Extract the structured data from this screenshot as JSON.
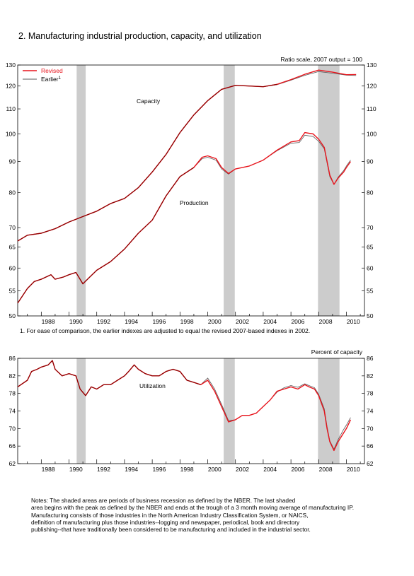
{
  "title": "2. Manufacturing industrial production, capacity, and utilization",
  "footnote": "1. For ease of comparison, the earlier indexes are adjusted to equal the revised 2007-based indexes in 2002.",
  "notes": " Notes: The shaded areas are periods of business recession as defined by the NBER.  The last shaded\narea begins with the peak as defined by the NBER and ends at the trough of a 3 month moving average of manufacturing IP.\n  Manufacturing consists of those industries in the North American Industry Classification System, or NAICS,\ndefinition of manufacturing plus those industries--logging and newspaper, periodical, book and directory\npublishing--that have traditionally been considered to be manufacturing and included in the industrial sector.",
  "colors": {
    "revised": "#e8141c",
    "earlier": "#5a5a5a",
    "capacity": "#8b0000",
    "recession": "#cccccc"
  },
  "chart_data": [
    {
      "type": "line",
      "scale": "log",
      "scale_note": "Ratio scale, 2007 output = 100",
      "xlim": [
        1986.3,
        2011.3
      ],
      "ylim": [
        50,
        130
      ],
      "x_ticks": [
        1988,
        1990,
        1992,
        1994,
        1996,
        1998,
        2000,
        2002,
        2004,
        2006,
        2008,
        2010
      ],
      "y_ticks": [
        50,
        55,
        60,
        65,
        70,
        80,
        90,
        100,
        110,
        120,
        130
      ],
      "recessions": [
        [
          1990.55,
          1991.2
        ],
        [
          2001.15,
          2001.95
        ],
        [
          2007.95,
          2009.5
        ]
      ],
      "legend": {
        "position": "top-left",
        "revised": "Revised",
        "earlier": "Earlier",
        "earlier_sup": "1"
      },
      "labels": {
        "capacity": "Capacity",
        "production": "Production"
      },
      "capacity": {
        "x": [
          1986.3,
          1987,
          1988,
          1989,
          1990,
          1991,
          1992,
          1993,
          1994,
          1995,
          1996,
          1997,
          1998,
          1999,
          2000,
          2001,
          2002,
          2003,
          2004,
          2005,
          2006,
          2007,
          2008,
          2009,
          2010,
          2010.7
        ],
        "revised": [
          66.5,
          68.0,
          68.5,
          69.7,
          71.5,
          73.0,
          74.5,
          76.7,
          78.2,
          81.5,
          86.5,
          92.5,
          100.5,
          107.5,
          113.5,
          118.5,
          120.3,
          120.0,
          119.7,
          120.8,
          123.0,
          125.5,
          127.5,
          126.5,
          125.3,
          125.4
        ],
        "earlier": [
          66.5,
          68.0,
          68.5,
          69.7,
          71.5,
          73.0,
          74.5,
          76.7,
          78.2,
          81.5,
          86.5,
          92.5,
          100.5,
          107.5,
          113.5,
          118.5,
          120.3,
          120.0,
          119.7,
          120.6,
          122.7,
          125.0,
          126.8,
          126.0,
          125.1,
          124.9
        ]
      },
      "production": {
        "x": [
          1986.3,
          1987,
          1987.5,
          1988,
          1988.7,
          1989,
          1989.6,
          1990,
          1990.5,
          1991,
          1991.5,
          1992,
          1993,
          1994,
          1995,
          1996,
          1997,
          1998,
          1999,
          1999.6,
          2000,
          2000.6,
          2001,
          2001.5,
          2002,
          2003,
          2004,
          2005,
          2006,
          2006.6,
          2007,
          2007.6,
          2008,
          2008.4,
          2008.8,
          2009.1,
          2009.4,
          2009.8,
          2010,
          2010.3
        ],
        "revised": [
          52.5,
          55.5,
          57.0,
          57.5,
          58.5,
          57.5,
          58.0,
          58.5,
          59.0,
          56.5,
          58.0,
          59.5,
          61.5,
          64.5,
          68.5,
          72.0,
          79.0,
          85.0,
          88.0,
          91.5,
          92.0,
          91.0,
          88.0,
          86.0,
          87.5,
          88.5,
          90.5,
          94.0,
          97.0,
          97.5,
          100.5,
          100.0,
          98.0,
          95.0,
          85.5,
          82.5,
          84.5,
          86.5,
          88.0,
          90.0
        ],
        "earlier": [
          52.5,
          55.5,
          57.0,
          57.5,
          58.5,
          57.5,
          58.0,
          58.5,
          59.0,
          56.5,
          58.0,
          59.5,
          61.5,
          64.5,
          68.5,
          72.0,
          79.0,
          85.0,
          88.0,
          91.0,
          91.5,
          90.5,
          87.5,
          85.8,
          87.5,
          88.5,
          90.5,
          93.8,
          96.5,
          96.8,
          99.5,
          99.0,
          97.2,
          94.5,
          85.0,
          82.5,
          84.8,
          87.0,
          88.5,
          90.5
        ]
      }
    },
    {
      "type": "line",
      "ylabel": "Percent of capacity",
      "label": "Utilization",
      "xlim": [
        1986.3,
        2011.3
      ],
      "ylim": [
        62,
        86
      ],
      "x_ticks": [
        1988,
        1990,
        1992,
        1994,
        1996,
        1998,
        2000,
        2002,
        2004,
        2006,
        2008,
        2010
      ],
      "y_ticks": [
        62,
        66,
        70,
        74,
        78,
        82,
        86
      ],
      "recessions": [
        [
          1990.55,
          1991.2
        ],
        [
          2001.15,
          2001.95
        ],
        [
          2007.95,
          2009.5
        ]
      ],
      "utilization": {
        "x": [
          1986.3,
          1987,
          1987.3,
          1987.7,
          1988,
          1988.5,
          1988.8,
          1989,
          1989.5,
          1990,
          1990.5,
          1990.8,
          1991.2,
          1991.6,
          1992,
          1992.5,
          1993,
          1993.5,
          1994,
          1994.3,
          1994.7,
          1995,
          1995.5,
          1996,
          1996.5,
          1997,
          1997.5,
          1998,
          1998.5,
          1999,
          1999.5,
          2000,
          2000.5,
          2001,
          2001.5,
          2002,
          2002.5,
          2003,
          2003.5,
          2004,
          2004.5,
          2005,
          2005.5,
          2006,
          2006.5,
          2007,
          2007.3,
          2007.7,
          2008,
          2008.4,
          2008.6,
          2008.8,
          2009.1,
          2009.4,
          2009.8,
          2010,
          2010.3
        ],
        "revised": [
          79.5,
          81.0,
          83.0,
          83.5,
          84.0,
          84.5,
          85.5,
          83.5,
          82.0,
          82.5,
          82.0,
          79.0,
          77.5,
          79.5,
          79.0,
          80.0,
          80.0,
          81.0,
          82.0,
          83.0,
          84.5,
          83.5,
          82.5,
          82.0,
          82.0,
          83.0,
          83.5,
          83.0,
          81.0,
          80.5,
          80.0,
          81.0,
          78.5,
          75.0,
          71.5,
          72.0,
          73.0,
          73.0,
          73.5,
          75.0,
          76.5,
          78.5,
          79.0,
          79.5,
          79.0,
          80.0,
          79.5,
          79.0,
          77.5,
          74.0,
          70.0,
          67.0,
          65.0,
          67.0,
          69.0,
          70.0,
          72.0
        ],
        "earlier": [
          79.5,
          81.0,
          83.0,
          83.5,
          84.0,
          84.5,
          85.5,
          83.5,
          82.0,
          82.5,
          82.0,
          79.0,
          77.5,
          79.5,
          79.0,
          80.0,
          80.0,
          81.0,
          82.0,
          83.0,
          84.5,
          83.5,
          82.5,
          82.0,
          82.0,
          83.0,
          83.5,
          83.0,
          81.0,
          80.5,
          80.0,
          81.5,
          79.0,
          75.5,
          71.8,
          72.0,
          73.0,
          73.0,
          73.5,
          75.0,
          76.5,
          78.3,
          79.3,
          79.8,
          79.4,
          80.2,
          79.8,
          79.3,
          77.8,
          74.5,
          70.5,
          67.2,
          65.3,
          67.5,
          69.8,
          70.8,
          72.5
        ]
      }
    }
  ]
}
